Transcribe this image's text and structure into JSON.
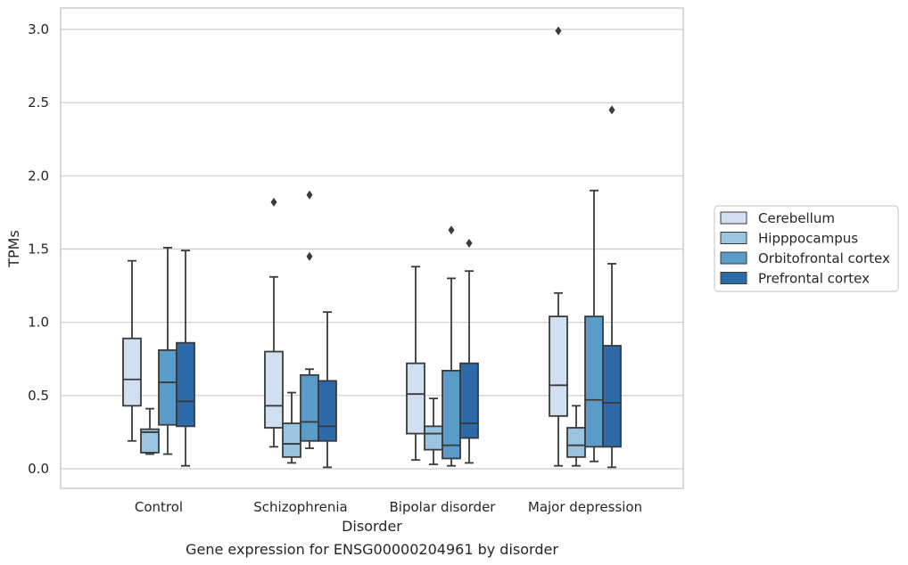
{
  "chart_data": {
    "type": "box",
    "caption": "Gene expression for ENSG00000204961 by disorder",
    "xlabel": "Disorder",
    "ylabel": "TPMs",
    "ylim": [
      -0.13,
      3.15
    ],
    "yticks": [
      0.0,
      0.5,
      1.0,
      1.5,
      2.0,
      2.5,
      3.0
    ],
    "ytick_labels": [
      "0.0",
      "0.5",
      "1.0",
      "1.5",
      "2.0",
      "2.5",
      "3.0"
    ],
    "categories": [
      "Control",
      "Schizophrenia",
      "Bipolar disorder",
      "Major depression"
    ],
    "grid": "horizontal",
    "legend_position": "right, outside",
    "series": [
      {
        "name": "Cerebellum",
        "color": "#d1e0f0",
        "boxes": [
          {
            "whislo": 0.19,
            "q1": 0.43,
            "med": 0.61,
            "q3": 0.89,
            "whishi": 1.42,
            "fliers": []
          },
          {
            "whislo": 0.15,
            "q1": 0.28,
            "med": 0.43,
            "q3": 0.8,
            "whishi": 1.31,
            "fliers": [
              1.82
            ]
          },
          {
            "whislo": 0.06,
            "q1": 0.24,
            "med": 0.51,
            "q3": 0.72,
            "whishi": 1.38,
            "fliers": []
          },
          {
            "whislo": 0.02,
            "q1": 0.36,
            "med": 0.57,
            "q3": 1.04,
            "whishi": 1.2,
            "fliers": [
              2.99
            ]
          }
        ]
      },
      {
        "name": "Hipppocampus",
        "color": "#9ac5e0",
        "boxes": [
          {
            "whislo": 0.1,
            "q1": 0.11,
            "med": 0.25,
            "q3": 0.27,
            "whishi": 0.41,
            "fliers": []
          },
          {
            "whislo": 0.04,
            "q1": 0.08,
            "med": 0.17,
            "q3": 0.31,
            "whishi": 0.52,
            "fliers": []
          },
          {
            "whislo": 0.03,
            "q1": 0.13,
            "med": 0.24,
            "q3": 0.29,
            "whishi": 0.48,
            "fliers": []
          },
          {
            "whislo": 0.02,
            "q1": 0.08,
            "med": 0.16,
            "q3": 0.28,
            "whishi": 0.43,
            "fliers": []
          }
        ]
      },
      {
        "name": "Orbitofrontal cortex",
        "color": "#5a9cc9",
        "boxes": [
          {
            "whislo": 0.1,
            "q1": 0.3,
            "med": 0.59,
            "q3": 0.81,
            "whishi": 1.51,
            "fliers": []
          },
          {
            "whislo": 0.14,
            "q1": 0.19,
            "med": 0.32,
            "q3": 0.64,
            "whishi": 0.68,
            "fliers": [
              1.45,
              1.87
            ]
          },
          {
            "whislo": 0.02,
            "q1": 0.07,
            "med": 0.16,
            "q3": 0.67,
            "whishi": 1.3,
            "fliers": [
              1.63
            ]
          },
          {
            "whislo": 0.05,
            "q1": 0.15,
            "med": 0.47,
            "q3": 1.04,
            "whishi": 1.9,
            "fliers": []
          }
        ]
      },
      {
        "name": "Prefrontal cortex",
        "color": "#2c6aa8",
        "boxes": [
          {
            "whislo": 0.02,
            "q1": 0.29,
            "med": 0.46,
            "q3": 0.86,
            "whishi": 1.49,
            "fliers": []
          },
          {
            "whislo": 0.01,
            "q1": 0.19,
            "med": 0.29,
            "q3": 0.6,
            "whishi": 1.07,
            "fliers": []
          },
          {
            "whislo": 0.04,
            "q1": 0.21,
            "med": 0.31,
            "q3": 0.72,
            "whishi": 1.35,
            "fliers": [
              1.54
            ]
          },
          {
            "whislo": 0.01,
            "q1": 0.15,
            "med": 0.45,
            "q3": 0.84,
            "whishi": 1.4,
            "fliers": [
              2.45
            ]
          }
        ]
      }
    ]
  }
}
